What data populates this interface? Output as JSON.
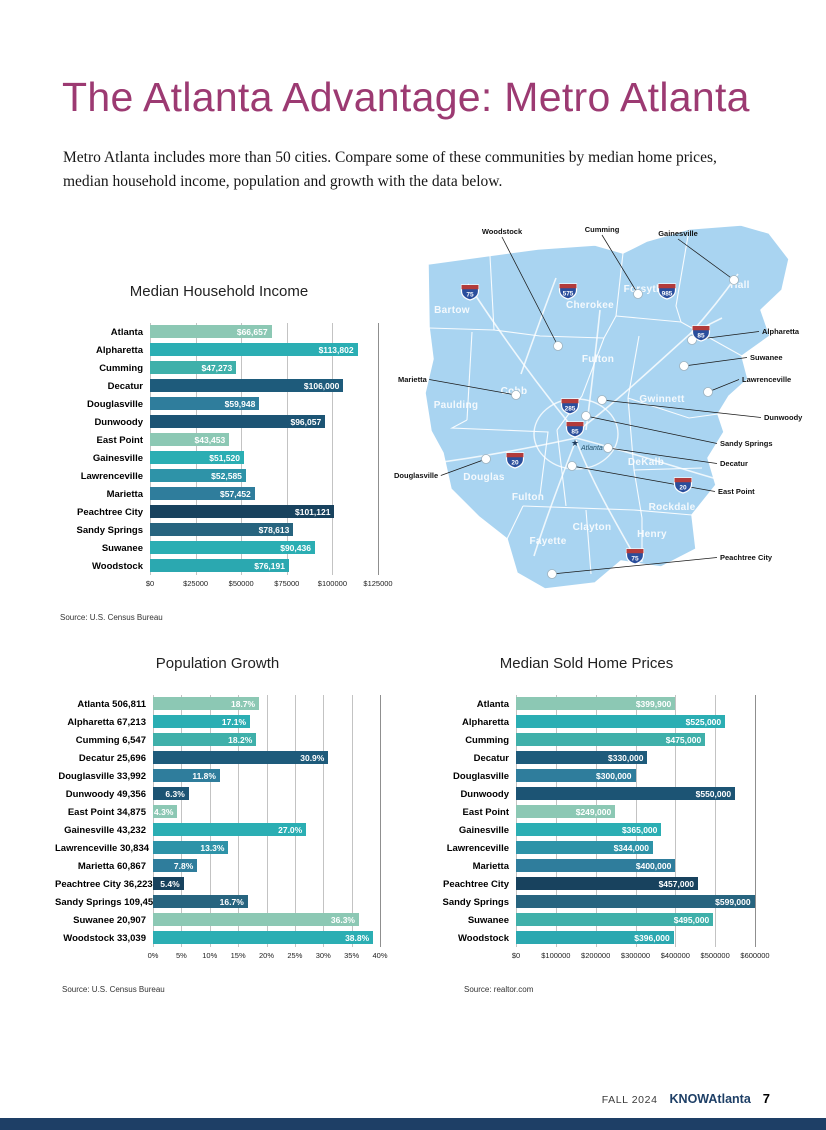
{
  "page": {
    "title": "The Atlanta Advantage: Metro Atlanta",
    "intro_line1": "Metro Atlanta includes more than 50 cities. Compare some of these communities by median home prices,",
    "intro_line2": "median household income, population and growth with the data below.",
    "footer": {
      "issue": "FALL 2024",
      "brand": "KNOWAtlanta",
      "page_number": "7"
    }
  },
  "colors": {
    "accent_plum": "#9C3A72",
    "footer_bar_navy": "#1E3F66",
    "map_fill": "#A9D4F1"
  },
  "chart_data": [
    {
      "id": "median-household-income",
      "type": "bar",
      "orientation": "horizontal",
      "title": "Median Household Income",
      "categories": [
        "Atlanta",
        "Alpharetta",
        "Cumming",
        "Decatur",
        "Douglasville",
        "Dunwoody",
        "East Point",
        "Gainesville",
        "Lawrenceville",
        "Marietta",
        "Peachtree City",
        "Sandy Springs",
        "Suwanee",
        "Woodstock"
      ],
      "values": [
        66657,
        113802,
        47273,
        106000,
        59948,
        96057,
        43453,
        51520,
        52585,
        57452,
        101121,
        78613,
        90436,
        76191
      ],
      "value_labels": [
        "$66,657",
        "$113,802",
        "$47,273",
        "$106,000",
        "$59,948",
        "$96,057",
        "$43,453",
        "$51,520",
        "$52,585",
        "$57,452",
        "$101,121",
        "$78,613",
        "$90,436",
        "$76,191"
      ],
      "bar_colors": [
        "#8CC8B4",
        "#2BAEB3",
        "#3FB0AA",
        "#1E5B7B",
        "#2F7D9C",
        "#1C5474",
        "#8CC8B4",
        "#2BAEB3",
        "#2E93A8",
        "#2F7D9C",
        "#18425E",
        "#27647F",
        "#2BAEB3",
        "#2BA8B0"
      ],
      "xlim": [
        0,
        125000
      ],
      "tick_values": [
        0,
        25000,
        50000,
        75000,
        100000,
        125000
      ],
      "tick_labels": [
        "$0",
        "$25000",
        "$50000",
        "$75000",
        "$100000",
        "$125000"
      ],
      "grid": true,
      "source": "Source: U.S. Census Bureau"
    },
    {
      "id": "population-growth",
      "type": "bar",
      "orientation": "horizontal",
      "title": "Population Growth",
      "categories": [
        "Atlanta 506,811",
        "Alpharetta 67,213",
        "Cumming 6,547",
        "Decatur 25,696",
        "Douglasville 33,992",
        "Dunwoody 49,356",
        "East Point 34,875",
        "Gainesville 43,232",
        "Lawrenceville 30,834",
        "Marietta 60,867",
        "Peachtree City 36,223",
        "Sandy Springs 109,452",
        "Suwanee 20,907",
        "Woodstock 33,039"
      ],
      "values": [
        18.7,
        17.1,
        18.2,
        30.9,
        11.8,
        6.3,
        4.3,
        27.0,
        13.3,
        7.8,
        5.4,
        16.7,
        36.3,
        38.8
      ],
      "value_labels": [
        "18.7%",
        "17.1%",
        "18.2%",
        "30.9%",
        "11.8%",
        "6.3%",
        "4.3%",
        "27.0%",
        "13.3%",
        "7.8%",
        "5.4%",
        "16.7%",
        "36.3%",
        "38.8%"
      ],
      "bar_colors": [
        "#8CC8B4",
        "#2BAEB3",
        "#3FB0AA",
        "#1E5B7B",
        "#2F7D9C",
        "#1C5474",
        "#8CC8B4",
        "#2BAEB3",
        "#2E93A8",
        "#2F7D9C",
        "#18425E",
        "#27647F",
        "#8CC8B4",
        "#2BAEB3"
      ],
      "xlim": [
        0,
        40
      ],
      "tick_values": [
        0,
        5,
        10,
        15,
        20,
        25,
        30,
        35,
        40
      ],
      "tick_labels": [
        "0%",
        "5%",
        "10%",
        "15%",
        "20%",
        "25%",
        "30%",
        "35%",
        "40%"
      ],
      "grid": true,
      "source": "Source: U.S. Census Bureau"
    },
    {
      "id": "median-sold-home-prices",
      "type": "bar",
      "orientation": "horizontal",
      "title": "Median Sold Home Prices",
      "categories": [
        "Atlanta",
        "Alpharetta",
        "Cumming",
        "Decatur",
        "Douglasville",
        "Dunwoody",
        "East Point",
        "Gainesville",
        "Lawrenceville",
        "Marietta",
        "Peachtree City",
        "Sandy Springs",
        "Suwanee",
        "Woodstock"
      ],
      "values": [
        399900,
        525000,
        475000,
        330000,
        300000,
        550000,
        249000,
        365000,
        344000,
        400000,
        457000,
        599000,
        495000,
        396000
      ],
      "value_labels": [
        "$399,900",
        "$525,000",
        "$475,000",
        "$330,000",
        "$300,000",
        "$550,000",
        "$249,000",
        "$365,000",
        "$344,000",
        "$400,000",
        "$457,000",
        "$599,000",
        "$495,000",
        "$396,000"
      ],
      "bar_colors": [
        "#8CC8B4",
        "#2BAEB3",
        "#3FB0AA",
        "#1E5B7B",
        "#2F7D9C",
        "#1C5474",
        "#8CC8B4",
        "#2BAEB3",
        "#2E93A8",
        "#2F7D9C",
        "#18425E",
        "#27647F",
        "#3FB0AA",
        "#2BA8B0"
      ],
      "xlim": [
        0,
        600000
      ],
      "tick_values": [
        0,
        100000,
        200000,
        300000,
        400000,
        500000,
        600000
      ],
      "tick_labels": [
        "$0",
        "$100000",
        "$200000",
        "$300000",
        "$400000",
        "$500000",
        "$600000"
      ],
      "grid": true,
      "source": "Source: realtor.com"
    }
  ],
  "map": {
    "counties": [
      "Bartow",
      "Cherokee",
      "Forsyth",
      "Hall",
      "Fulton",
      "Cobb",
      "Paulding",
      "Gwinnett",
      "Douglas",
      "Fulton",
      "DeKalb",
      "Rockdale",
      "Clayton",
      "Fayette",
      "Henry"
    ],
    "atlanta_label": "Atlanta",
    "callouts": [
      "Woodstock",
      "Cumming",
      "Gainesville",
      "Alpharetta",
      "Suwanee",
      "Lawrenceville",
      "Dunwoody",
      "Sandy Springs",
      "Decatur",
      "East Point",
      "Peachtree City",
      "Marietta",
      "Douglasville"
    ],
    "highway_shields": [
      "75",
      "575",
      "985",
      "85",
      "285",
      "85",
      "20",
      "20",
      "75"
    ]
  }
}
